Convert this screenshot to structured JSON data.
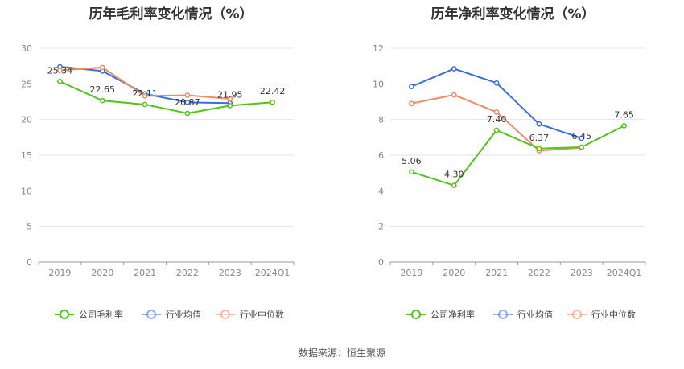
{
  "source": "数据来源：恒生聚源",
  "colors": {
    "company": "#52c41a",
    "avg": "#3a6fe0",
    "median": "#f08a62"
  },
  "chart_data": [
    {
      "type": "line",
      "title": "历年毛利率变化情况（%）",
      "categories": [
        "2019",
        "2020",
        "2021",
        "2022",
        "2023",
        "2024Q1"
      ],
      "ylim": [
        0,
        30
      ],
      "yticks": [
        0,
        5,
        10,
        15,
        20,
        25,
        30
      ],
      "grid": true,
      "legend": "bottom",
      "series": [
        {
          "name": "公司毛利率",
          "key": "company",
          "values": [
            25.34,
            22.65,
            22.11,
            20.87,
            21.95,
            22.42
          ],
          "labels": true
        },
        {
          "name": "行业均值",
          "key": "avg",
          "values": [
            27.4,
            26.8,
            23.6,
            22.4,
            22.3,
            null
          ],
          "labels": false
        },
        {
          "name": "行业中位数",
          "key": "median",
          "values": [
            26.9,
            27.3,
            23.3,
            23.4,
            22.9,
            null
          ],
          "labels": false
        }
      ]
    },
    {
      "type": "line",
      "title": "历年净利率变化情况（%）",
      "categories": [
        "2019",
        "2020",
        "2021",
        "2022",
        "2023",
        "2024Q1"
      ],
      "ylim": [
        0,
        12
      ],
      "yticks": [
        0,
        2,
        4,
        6,
        8,
        10,
        12
      ],
      "grid": true,
      "legend": "bottom",
      "series": [
        {
          "name": "公司净利率",
          "key": "company",
          "values": [
            5.06,
            4.3,
            7.4,
            6.37,
            6.45,
            7.65
          ],
          "labels": true
        },
        {
          "name": "行业均值",
          "key": "avg",
          "values": [
            9.85,
            10.85,
            10.05,
            7.75,
            6.95,
            null
          ],
          "labels": false
        },
        {
          "name": "行业中位数",
          "key": "median",
          "values": [
            8.9,
            9.38,
            8.42,
            6.25,
            6.42,
            null
          ],
          "labels": false
        }
      ]
    }
  ]
}
